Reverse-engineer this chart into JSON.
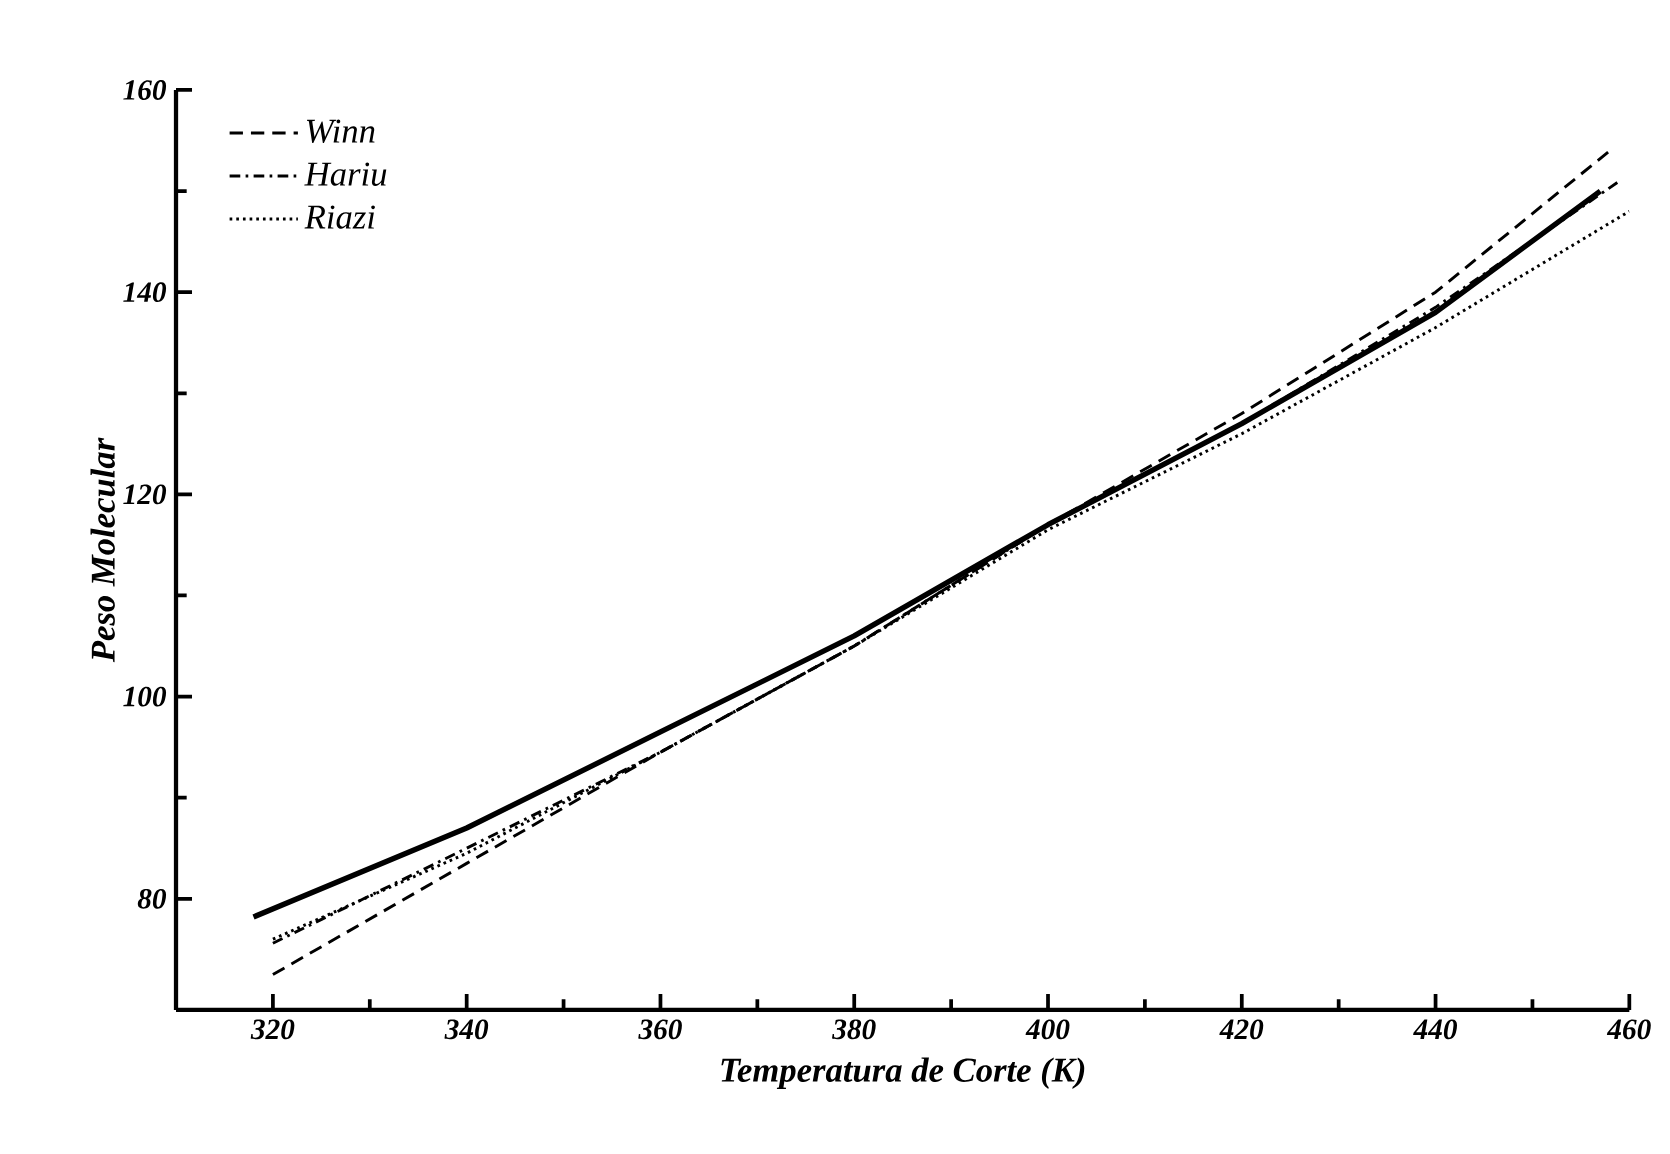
{
  "chart_data": {
    "type": "line",
    "xlabel": "Temperatura de Corte  (K)",
    "ylabel": "Peso Molecular",
    "xlim": [
      310,
      460
    ],
    "xticks": [
      320,
      340,
      360,
      380,
      400,
      420,
      440,
      460
    ],
    "ylim": [
      69,
      160
    ],
    "yticks": [
      80,
      100,
      120,
      140,
      160
    ],
    "grid": false,
    "legend": "top left",
    "series": [
      {
        "color": "#000000",
        "line_style": "solid",
        "x": [
          318,
          340,
          360,
          380,
          400,
          420,
          440,
          457
        ],
        "values": [
          78.2,
          87,
          96.5,
          106,
          117,
          127,
          138,
          150
        ]
      },
      {
        "name": "Winn",
        "color": "#000000",
        "line_style": "dashed",
        "x": [
          320,
          340,
          360,
          380,
          400,
          420,
          440,
          458
        ],
        "values": [
          72.5,
          83.5,
          94.5,
          105,
          117,
          128,
          140,
          154
        ]
      },
      {
        "name": "Hariu",
        "color": "#000000",
        "line_style": "dashdot",
        "x": [
          320,
          340,
          360,
          380,
          400,
          420,
          440,
          459
        ],
        "values": [
          75.6,
          85,
          94.5,
          105,
          117,
          127,
          138.5,
          151
        ]
      },
      {
        "name": "Riazi",
        "color": "#000000",
        "line_style": "dotted",
        "x": [
          320,
          340,
          360,
          380,
          400,
          420,
          440,
          460
        ],
        "values": [
          76,
          84.5,
          94.5,
          105,
          116.5,
          126,
          136.5,
          148
        ]
      }
    ]
  }
}
